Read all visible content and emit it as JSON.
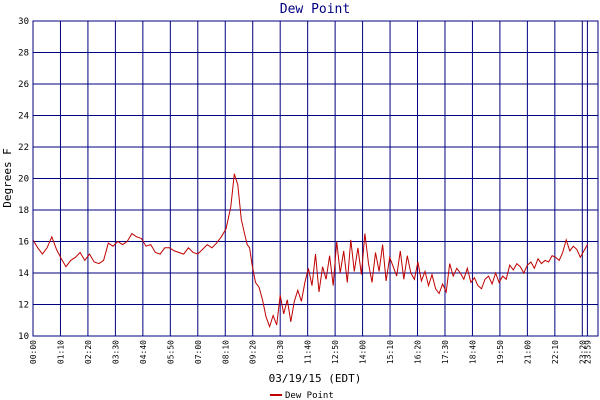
{
  "chart_data": {
    "type": "line",
    "title": "Dew Point",
    "xlabel": "03/19/15 (EDT)",
    "ylabel": "Degrees F",
    "ylim": [
      10,
      30
    ],
    "y_ticks": [
      "10",
      "12",
      "14",
      "16",
      "18",
      "20",
      "22",
      "24",
      "26",
      "28",
      "30"
    ],
    "x_range_hours": [
      0,
      24
    ],
    "x_ticks": [
      {
        "hour": 0.0,
        "label": "00:00"
      },
      {
        "hour": 1.1667,
        "label": "01:10"
      },
      {
        "hour": 2.3333,
        "label": "02:20"
      },
      {
        "hour": 3.5,
        "label": "03:30"
      },
      {
        "hour": 4.6667,
        "label": "04:40"
      },
      {
        "hour": 5.8333,
        "label": "05:50"
      },
      {
        "hour": 7.0,
        "label": "07:00"
      },
      {
        "hour": 8.1667,
        "label": "08:10"
      },
      {
        "hour": 9.3333,
        "label": "09:20"
      },
      {
        "hour": 10.5,
        "label": "10:30"
      },
      {
        "hour": 11.6667,
        "label": "11:40"
      },
      {
        "hour": 12.8333,
        "label": "12:50"
      },
      {
        "hour": 14.0,
        "label": "14:00"
      },
      {
        "hour": 15.1667,
        "label": "15:10"
      },
      {
        "hour": 16.3333,
        "label": "16:20"
      },
      {
        "hour": 17.5,
        "label": "17:30"
      },
      {
        "hour": 18.6667,
        "label": "18:40"
      },
      {
        "hour": 19.8333,
        "label": "19:50"
      },
      {
        "hour": 21.0,
        "label": "21:00"
      },
      {
        "hour": 22.1667,
        "label": "22:10"
      },
      {
        "hour": 23.3333,
        "label": "23:20"
      },
      {
        "hour": 23.55,
        "label": "23:59"
      }
    ],
    "grid": true,
    "legend_position": "bottom-center",
    "colors": {
      "line": "#c00000",
      "grid": "#000080",
      "title": "#000080",
      "background": "#ffffff"
    },
    "series": [
      {
        "name": "Dew Point",
        "x_hours": [
          0.0,
          0.2,
          0.4,
          0.6,
          0.8,
          1.0,
          1.2,
          1.4,
          1.6,
          1.8,
          2.0,
          2.2,
          2.4,
          2.6,
          2.8,
          3.0,
          3.2,
          3.4,
          3.6,
          3.8,
          4.0,
          4.2,
          4.4,
          4.6,
          4.8,
          5.0,
          5.2,
          5.4,
          5.6,
          5.8,
          6.0,
          6.2,
          6.4,
          6.6,
          6.8,
          7.0,
          7.2,
          7.4,
          7.6,
          7.8,
          8.0,
          8.2,
          8.4,
          8.55,
          8.7,
          8.85,
          9.0,
          9.1,
          9.2,
          9.3,
          9.45,
          9.6,
          9.75,
          9.9,
          10.05,
          10.2,
          10.35,
          10.5,
          10.65,
          10.8,
          10.95,
          11.1,
          11.25,
          11.4,
          11.55,
          11.7,
          11.85,
          12.0,
          12.15,
          12.3,
          12.45,
          12.6,
          12.75,
          12.9,
          13.05,
          13.2,
          13.35,
          13.5,
          13.65,
          13.8,
          13.95,
          14.1,
          14.25,
          14.4,
          14.55,
          14.7,
          14.85,
          15.0,
          15.15,
          15.3,
          15.45,
          15.6,
          15.75,
          15.9,
          16.05,
          16.2,
          16.35,
          16.5,
          16.65,
          16.8,
          16.95,
          17.1,
          17.25,
          17.4,
          17.55,
          17.7,
          17.85,
          18.0,
          18.15,
          18.3,
          18.45,
          18.6,
          18.75,
          18.9,
          19.05,
          19.2,
          19.35,
          19.5,
          19.65,
          19.8,
          19.95,
          20.1,
          20.25,
          20.4,
          20.55,
          20.7,
          20.85,
          21.0,
          21.15,
          21.3,
          21.45,
          21.6,
          21.75,
          21.9,
          22.05,
          22.2,
          22.35,
          22.5,
          22.65,
          22.8,
          22.95,
          23.1,
          23.25,
          23.4,
          23.55
        ],
        "values": [
          16.1,
          15.6,
          15.2,
          15.6,
          16.3,
          15.5,
          14.9,
          14.4,
          14.8,
          15.0,
          15.3,
          14.8,
          15.2,
          14.7,
          14.6,
          14.8,
          15.9,
          15.7,
          16.0,
          15.8,
          16.0,
          16.5,
          16.3,
          16.2,
          15.7,
          15.8,
          15.3,
          15.2,
          15.6,
          15.6,
          15.4,
          15.3,
          15.2,
          15.6,
          15.3,
          15.2,
          15.5,
          15.8,
          15.6,
          15.9,
          16.3,
          16.8,
          18.2,
          20.3,
          19.6,
          17.4,
          16.4,
          15.8,
          15.6,
          14.6,
          13.4,
          13.1,
          12.3,
          11.2,
          10.6,
          11.3,
          10.7,
          12.6,
          11.4,
          12.3,
          10.9,
          12.2,
          12.9,
          12.2,
          13.4,
          14.3,
          13.2,
          15.2,
          12.8,
          14.4,
          13.6,
          15.1,
          13.2,
          16.0,
          14.0,
          15.4,
          13.4,
          16.1,
          14.1,
          15.6,
          13.9,
          16.5,
          14.6,
          13.4,
          15.3,
          14.1,
          15.8,
          13.5,
          15.0,
          14.4,
          13.8,
          15.4,
          13.6,
          15.1,
          14.0,
          13.6,
          14.7,
          13.5,
          14.1,
          13.2,
          13.9,
          13.0,
          12.7,
          13.3,
          12.8,
          14.6,
          13.8,
          14.3,
          14.0,
          13.6,
          14.3,
          13.4,
          13.7,
          13.2,
          13.0,
          13.6,
          13.8,
          13.3,
          14.0,
          13.4,
          13.8,
          13.6,
          14.5,
          14.2,
          14.6,
          14.4,
          14.0,
          14.5,
          14.7,
          14.3,
          14.9,
          14.6,
          14.8,
          14.7,
          15.1,
          15.0,
          14.8,
          15.3,
          16.1,
          15.4,
          15.7,
          15.5,
          15.0,
          15.4,
          15.8
        ]
      }
    ]
  }
}
